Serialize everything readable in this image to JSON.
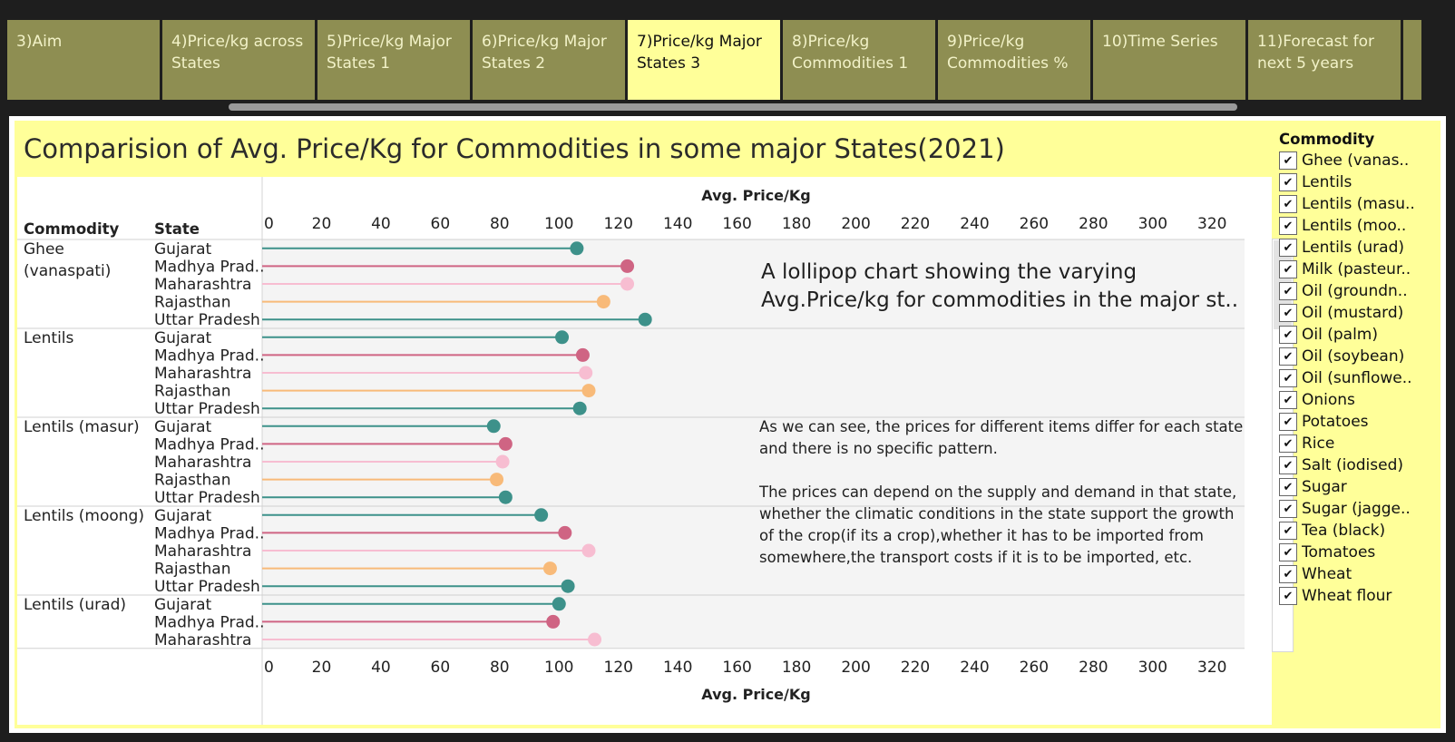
{
  "tabs": [
    {
      "label": "3)Aim",
      "active": false
    },
    {
      "label": "4)Price/kg across States",
      "active": false
    },
    {
      "label": "5)Price/kg Major States 1",
      "active": false
    },
    {
      "label": "6)Price/kg Major States 2",
      "active": false
    },
    {
      "label": "7)Price/kg Major States 3",
      "active": true
    },
    {
      "label": "8)Price/kg Commodities 1",
      "active": false
    },
    {
      "label": "9)Price/kg Commodities %",
      "active": false
    },
    {
      "label": "10)Time Series",
      "active": false
    },
    {
      "label": "11)Forecast for next 5 years",
      "active": false
    }
  ],
  "dashboard": {
    "title": "Comparision of Avg. Price/Kg for Commodities in some major States(2021)",
    "note_title": "A lollipop chart showing the varying Avg.Price/kg for commodities in the major st..",
    "note_paragraphs": [
      "As we can see, the prices for different items differ for each state and there is no specific pattern.",
      "The prices can depend on the supply and demand in that state, whether the climatic conditions in the state support the growth of the crop(if its a crop),whether it has to be imported from somewhere,the transport costs if it is to be imported, etc."
    ]
  },
  "legend": {
    "title": "Commodity",
    "items": [
      "Ghee (vanas..",
      "Lentils",
      "Lentils (masu..",
      "Lentils (moo..",
      "Lentils (urad)",
      "Milk (pasteur..",
      "Oil (groundn..",
      "Oil (mustard)",
      "Oil (palm)",
      "Oil (soybean)",
      "Oil (sunflowe..",
      "Onions",
      "Potatoes",
      "Rice",
      "Salt (iodised)",
      "Sugar",
      "Sugar (jagge..",
      "Tea (black)",
      "Tomatoes",
      "Wheat",
      "Wheat flour"
    ],
    "check_glyph": "✔"
  },
  "colors": {
    "Gujarat": "#3d918a",
    "Madhya Pradesh": "#cf6483",
    "Maharashtra": "#f7bdd1",
    "Rajasthan": "#f8ba79",
    "Uttar Pradesh": "#3d918a"
  },
  "chart_data": {
    "type": "lollipop",
    "title": "",
    "xlabel": "Avg. Price/Kg",
    "ylabel": "",
    "xlim": [
      0,
      330
    ],
    "xticks": [
      0,
      20,
      40,
      60,
      80,
      100,
      120,
      140,
      160,
      180,
      200,
      220,
      240,
      260,
      280,
      300,
      320
    ],
    "column_headers": [
      "Commodity",
      "State"
    ],
    "groups": [
      {
        "commodity": "Ghee\n(vanaspati)",
        "rows": [
          {
            "state": "Gujarat",
            "value": 106
          },
          {
            "state": "Madhya Prad..",
            "value": 123
          },
          {
            "state": "Maharashtra",
            "value": 123
          },
          {
            "state": "Rajasthan",
            "value": 115
          },
          {
            "state": "Uttar Pradesh",
            "value": 129
          }
        ]
      },
      {
        "commodity": "Lentils",
        "rows": [
          {
            "state": "Gujarat",
            "value": 101
          },
          {
            "state": "Madhya Prad..",
            "value": 108
          },
          {
            "state": "Maharashtra",
            "value": 109
          },
          {
            "state": "Rajasthan",
            "value": 110
          },
          {
            "state": "Uttar Pradesh",
            "value": 107
          }
        ]
      },
      {
        "commodity": "Lentils (masur)",
        "rows": [
          {
            "state": "Gujarat",
            "value": 78
          },
          {
            "state": "Madhya Prad..",
            "value": 82
          },
          {
            "state": "Maharashtra",
            "value": 81
          },
          {
            "state": "Rajasthan",
            "value": 79
          },
          {
            "state": "Uttar Pradesh",
            "value": 82
          }
        ]
      },
      {
        "commodity": "Lentils (moong)",
        "rows": [
          {
            "state": "Gujarat",
            "value": 94
          },
          {
            "state": "Madhya Prad..",
            "value": 102
          },
          {
            "state": "Maharashtra",
            "value": 110
          },
          {
            "state": "Rajasthan",
            "value": 97
          },
          {
            "state": "Uttar Pradesh",
            "value": 103
          }
        ]
      },
      {
        "commodity": "Lentils (urad)",
        "rows": [
          {
            "state": "Gujarat",
            "value": 100
          },
          {
            "state": "Madhya Prad..",
            "value": 98
          },
          {
            "state": "Maharashtra",
            "value": 112
          }
        ]
      }
    ]
  }
}
